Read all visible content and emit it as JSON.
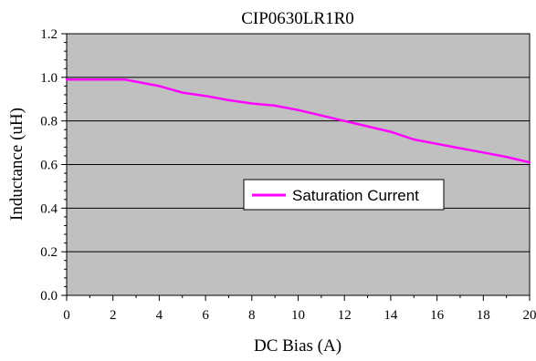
{
  "chart_data": {
    "type": "line",
    "title": "CIP0630LR1R0",
    "xlabel": "DC Bias (A)",
    "ylabel": "Inductance (uH)",
    "xlim": [
      0,
      20
    ],
    "ylim": [
      0,
      1.2
    ],
    "x_ticks": [
      "0",
      "2",
      "4",
      "6",
      "8",
      "10",
      "12",
      "14",
      "16",
      "18",
      "20"
    ],
    "y_ticks": [
      "0.0",
      "0.2",
      "0.4",
      "0.6",
      "0.8",
      "1.0",
      "1.2"
    ],
    "grid": "horizontal",
    "legend_position": "center-right",
    "colors": {
      "plot_background": "#c0c0c0",
      "series": "#ff00ff",
      "gridline": "#000000"
    },
    "series": [
      {
        "name": "Saturation Current",
        "x": [
          0,
          1,
          2,
          2.5,
          3,
          4,
          5,
          6,
          7,
          8,
          9,
          10,
          11,
          12,
          13,
          14,
          15,
          16,
          17,
          18,
          19,
          20
        ],
        "y": [
          0.99,
          0.99,
          0.99,
          0.99,
          0.98,
          0.96,
          0.93,
          0.915,
          0.895,
          0.88,
          0.87,
          0.85,
          0.825,
          0.8,
          0.775,
          0.75,
          0.715,
          0.695,
          0.675,
          0.655,
          0.635,
          0.61
        ]
      }
    ]
  }
}
